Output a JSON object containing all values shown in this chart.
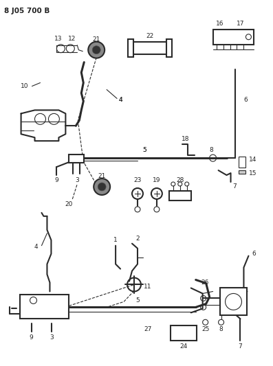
{
  "title": "8 J05 700 B",
  "bg_color": "#ffffff",
  "lc": "#2a2a2a",
  "figsize": [
    3.97,
    5.33
  ],
  "dpi": 100,
  "lw_main": 1.5,
  "lw_thin": 0.8,
  "lw_thick": 2.2
}
